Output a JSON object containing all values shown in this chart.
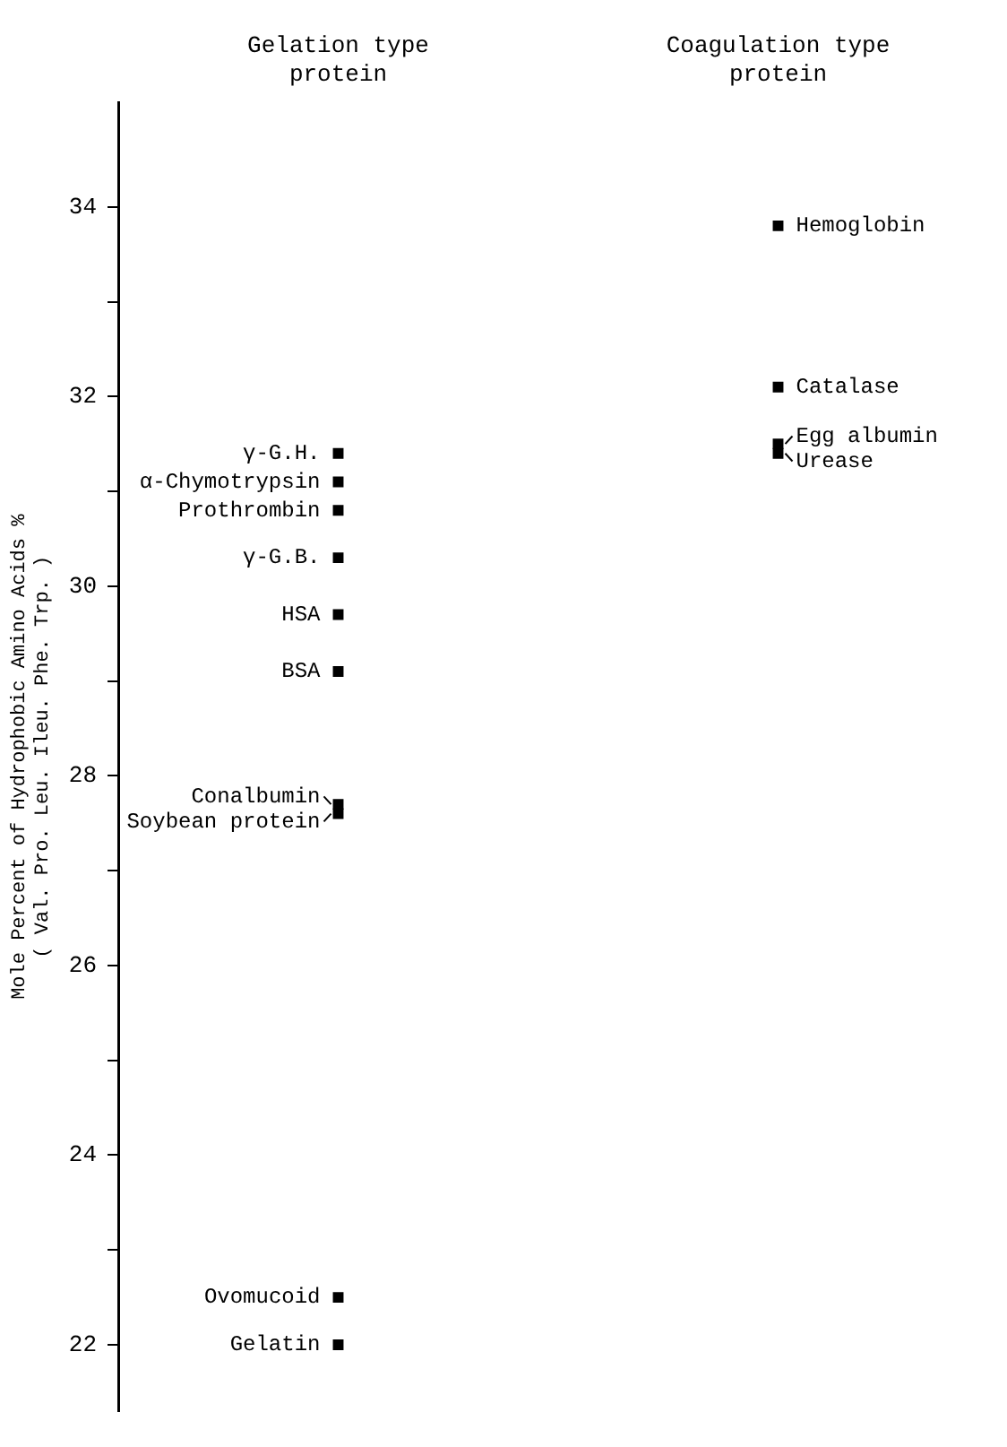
{
  "chart_data": {
    "type": "scatter",
    "ylabel": "Mole Percent of Hydrophobic Amino Acids %\n( Val. Pro. Leu. Ileu. Phe. Trp. )",
    "categories": [
      "Gelation type protein",
      "Coagulation type protein"
    ],
    "series": [
      {
        "color": "#000000",
        "x": [
          "Gelation type protein",
          "Gelation type protein",
          "Gelation type protein",
          "Gelation type protein",
          "Gelation type protein",
          "Gelation type protein",
          "Gelation type protein",
          "Gelation type protein",
          "Gelation type protein",
          "Gelation type protein"
        ],
        "values": [
          31.4,
          31.1,
          30.8,
          30.3,
          29.7,
          29.1,
          27.7,
          27.6,
          22.5,
          22.0
        ]
      },
      {
        "color": "#000000",
        "x": [
          "Coagulation type protein",
          "Coagulation type protein",
          "Coagulation type protein",
          "Coagulation type protein"
        ],
        "values": [
          33.8,
          32.1,
          31.5,
          31.4
        ]
      }
    ],
    "annotations": [
      {
        "text": "γ-G.H.",
        "x": "Gelation type protein",
        "y": 31.4
      },
      {
        "text": "α-Chymotrypsin",
        "x": "Gelation type protein",
        "y": 31.1
      },
      {
        "text": "Prothrombin",
        "x": "Gelation type protein",
        "y": 30.8
      },
      {
        "text": "γ-G.B.",
        "x": "Gelation type protein",
        "y": 30.3
      },
      {
        "text": "HSA",
        "x": "Gelation type protein",
        "y": 29.7
      },
      {
        "text": "BSA",
        "x": "Gelation type protein",
        "y": 29.1
      },
      {
        "text": "Conalbumin",
        "x": "Gelation type protein",
        "y": 27.7
      },
      {
        "text": "Soybean protein",
        "x": "Gelation type protein",
        "y": 27.6
      },
      {
        "text": "Ovomucoid",
        "x": "Gelation type protein",
        "y": 22.5
      },
      {
        "text": "Gelatin",
        "x": "Gelation type protein",
        "y": 22.0
      },
      {
        "text": "Hemoglobin",
        "x": "Coagulation type protein",
        "y": 33.8
      },
      {
        "text": "Catalase",
        "x": "Coagulation type protein",
        "y": 32.1
      },
      {
        "text": "Egg albumin",
        "x": "Coagulation type protein",
        "y": 31.5
      },
      {
        "text": "Urease",
        "x": "Coagulation type protein",
        "y": 31.4
      }
    ],
    "ylim": [
      21.3,
      35.1
    ],
    "yticks": [
      22,
      {
        "value": 23,
        "label": null
      },
      24,
      {
        "value": 25,
        "label": null
      },
      26,
      {
        "value": 27,
        "label": null
      },
      28,
      {
        "value": 29,
        "label": null
      },
      30,
      {
        "value": 31,
        "label": null
      },
      32,
      {
        "value": 33,
        "label": null
      },
      34
    ],
    "grid": false,
    "legend": false,
    "marker": "square"
  }
}
